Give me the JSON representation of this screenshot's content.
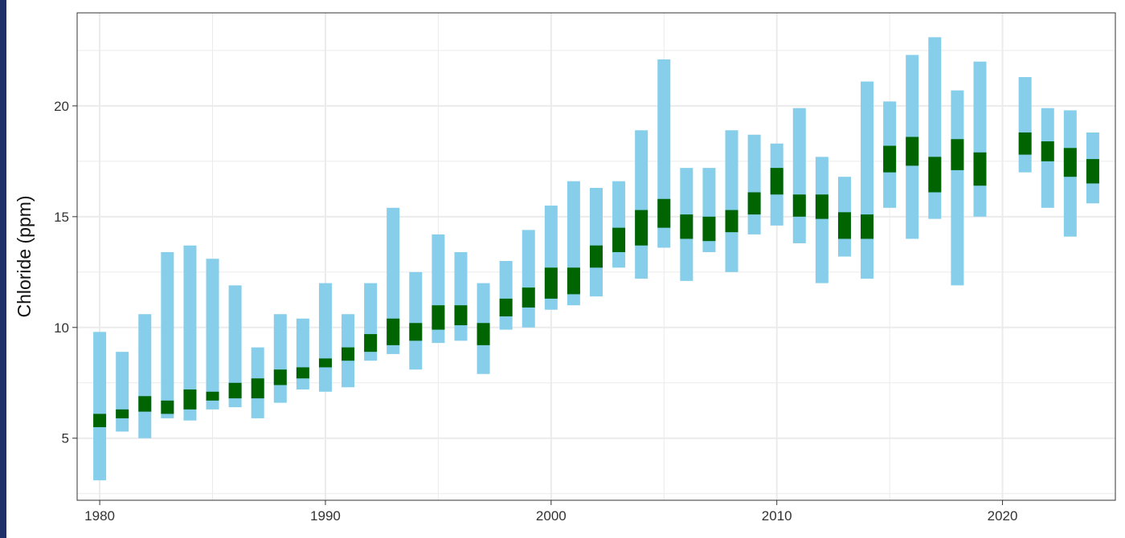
{
  "chart_data": {
    "type": "bar",
    "title": "",
    "xlabel": "",
    "ylabel": "Chloride (ppm)",
    "xlim": [
      1979,
      2025
    ],
    "ylim": [
      2.2,
      24.2
    ],
    "x_ticks": [
      1980,
      1990,
      2000,
      2010,
      2020
    ],
    "y_ticks": [
      5,
      10,
      15,
      20
    ],
    "grid": true,
    "colors": {
      "range": "#87ceeb",
      "median": "#006400",
      "grid": "#ebebeb",
      "panel_border": "#333333"
    },
    "series": [
      {
        "years": [
          1980,
          1981,
          1982,
          1983,
          1984,
          1985,
          1986,
          1987,
          1988,
          1989,
          1990,
          1991,
          1992,
          1993,
          1994,
          1995,
          1996,
          1997,
          1998,
          1999,
          2000,
          2001,
          2002,
          2003,
          2004,
          2005,
          2006,
          2007,
          2008,
          2009,
          2010,
          2011,
          2012,
          2013,
          2014,
          2015,
          2016,
          2017,
          2018,
          2019,
          2021,
          2022,
          2023,
          2024
        ],
        "range_low": [
          3.1,
          5.3,
          5.0,
          5.9,
          5.8,
          6.3,
          6.4,
          5.9,
          6.6,
          7.2,
          7.1,
          7.3,
          8.5,
          8.8,
          8.1,
          9.3,
          9.4,
          7.9,
          9.9,
          10.0,
          10.8,
          11.0,
          11.4,
          12.7,
          12.2,
          13.6,
          12.1,
          13.4,
          12.5,
          14.2,
          14.6,
          13.8,
          12.0,
          13.2,
          12.2,
          15.4,
          14.0,
          14.9,
          11.9,
          15.0,
          17.0,
          15.4,
          14.1,
          15.6
        ],
        "range_high": [
          9.8,
          8.9,
          10.6,
          13.4,
          13.7,
          13.1,
          11.9,
          9.1,
          10.6,
          10.4,
          12.0,
          10.6,
          12.0,
          15.4,
          12.5,
          14.2,
          13.4,
          12.0,
          13.0,
          14.4,
          15.5,
          16.6,
          16.3,
          16.6,
          18.9,
          22.1,
          17.2,
          17.2,
          18.9,
          18.7,
          18.3,
          19.9,
          17.7,
          16.8,
          21.1,
          20.2,
          22.3,
          23.1,
          20.7,
          22.0,
          21.3,
          19.9,
          19.8,
          18.8
        ],
        "median_low": [
          5.5,
          5.9,
          6.2,
          6.1,
          6.3,
          6.7,
          6.8,
          6.8,
          7.4,
          7.7,
          8.2,
          8.5,
          8.9,
          9.2,
          9.4,
          9.9,
          10.1,
          9.2,
          10.5,
          10.9,
          11.3,
          11.5,
          12.7,
          13.4,
          13.7,
          14.5,
          14.0,
          13.9,
          14.3,
          15.1,
          16.0,
          15.0,
          14.9,
          14.0,
          14.0,
          17.0,
          17.3,
          16.1,
          17.1,
          16.4,
          17.8,
          17.5,
          16.8,
          16.5
        ],
        "median_high": [
          6.1,
          6.3,
          6.9,
          6.7,
          7.2,
          7.1,
          7.5,
          7.7,
          8.1,
          8.2,
          8.6,
          9.1,
          9.7,
          10.4,
          10.2,
          11.0,
          11.0,
          10.2,
          11.3,
          11.8,
          12.7,
          12.7,
          13.7,
          14.5,
          15.3,
          15.8,
          15.1,
          15.0,
          15.3,
          16.1,
          17.2,
          16.0,
          16.0,
          15.2,
          15.1,
          18.2,
          18.6,
          17.7,
          18.5,
          17.9,
          18.8,
          18.4,
          18.1,
          17.6
        ]
      }
    ]
  }
}
